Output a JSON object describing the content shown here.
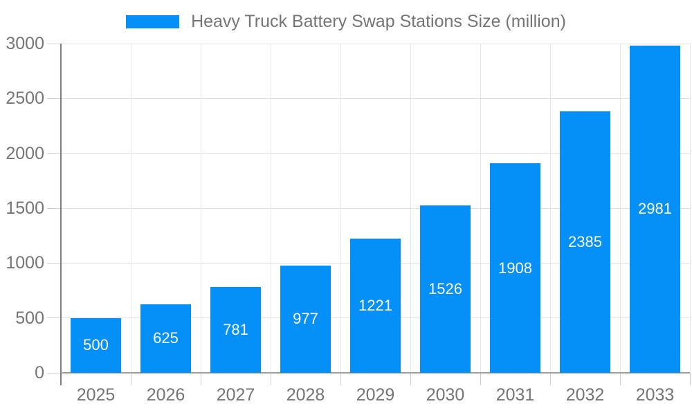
{
  "chart_data": {
    "type": "bar",
    "title": "Heavy Truck Battery Swap Stations Size (million)",
    "categories": [
      "2025",
      "2026",
      "2027",
      "2028",
      "2029",
      "2030",
      "2031",
      "2032",
      "2033"
    ],
    "values": [
      500,
      625,
      781,
      977,
      1221,
      1526,
      1908,
      2385,
      2981
    ],
    "xlabel": "",
    "ylabel": "",
    "ylim": [
      0,
      3000
    ],
    "yticks": [
      0,
      500,
      1000,
      1500,
      2000,
      2500,
      3000
    ],
    "grid": "on",
    "legend_position": "top",
    "bar_color": "#0590f8",
    "bar_label_color": "#ffffff",
    "axis_text_color": "#757575",
    "gridline_color": "#e2e2e2"
  },
  "legend": {
    "label": "Heavy Truck Battery Swap Stations Size (million)"
  }
}
